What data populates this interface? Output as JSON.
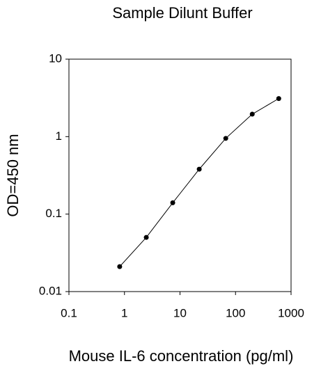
{
  "chart_data": {
    "type": "line",
    "title": "Sample Dilunt Buffer",
    "x_label": "Mouse IL-6 concentration (pg/ml)",
    "y_label": "OD=450 nm",
    "x": [
      0.82,
      2.47,
      7.4,
      22.2,
      66.7,
      200,
      600
    ],
    "values": [
      0.021,
      0.05,
      0.14,
      0.38,
      0.95,
      1.95,
      3.1
    ],
    "color": "#000000",
    "markers": true,
    "xscale": "log",
    "yscale": "log",
    "xlim": [
      0.1,
      1000
    ],
    "ylim": [
      0.01,
      10
    ],
    "xticks": [
      0.1,
      1,
      10,
      100,
      1000
    ],
    "yticks": [
      0.01,
      0.1,
      1,
      10
    ],
    "grid": false
  }
}
